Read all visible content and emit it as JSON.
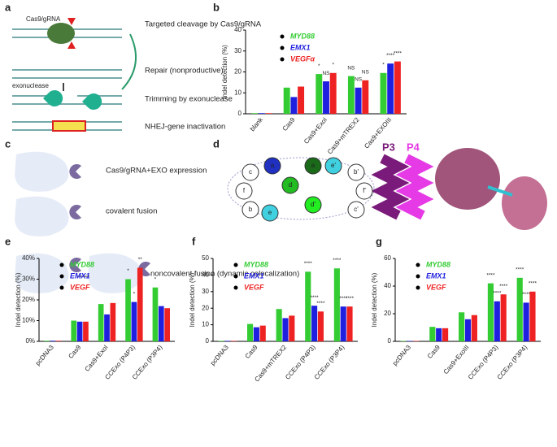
{
  "panels": [
    "a",
    "b",
    "c",
    "d",
    "e",
    "f",
    "g"
  ],
  "panel_a": {
    "enzyme": "Cas9/gRNA",
    "steps": [
      "Targeted cleavage by Cas9/gRNA",
      "Repair (nonproductive)",
      "Trimming by exonuclease",
      "NHEJ-gene inactivation"
    ],
    "exonuclease": "exonuclease"
  },
  "panel_c": {
    "labels": [
      "Cas9/gRNA+EXO expression",
      "covalent fusion",
      "noncovalent fusion (dynamic colocalization)"
    ]
  },
  "panel_d": {
    "nodes": [
      "c",
      "a",
      "d",
      "a",
      "e'",
      "b'",
      "f'",
      "c'",
      "e",
      "d'",
      "b",
      "f"
    ],
    "helices": [
      "P3",
      "P4"
    ]
  },
  "chart_data": [
    {
      "type": "bar",
      "y_label": "Indel detection (%)",
      "categories": [
        "blank",
        "Cas9",
        "Cas9+ExoI",
        "Cas9+mTREX2",
        "Cas9+EXOIII"
      ],
      "series": [
        {
          "name": "MYD88",
          "color": "#33cc33",
          "values": [
            0.3,
            12.5,
            19,
            18,
            19.5
          ]
        },
        {
          "name": "EMX1",
          "color": "#1f1fe0",
          "values": [
            0.3,
            8,
            15.5,
            12.5,
            24
          ]
        },
        {
          "name": "VEGFα",
          "color": "#ee2222",
          "values": [
            0.3,
            13,
            19.5,
            16,
            25
          ]
        }
      ],
      "significance": [
        [
          null,
          null,
          null
        ],
        [
          null,
          null,
          null
        ],
        [
          "*",
          "NS",
          "*"
        ],
        [
          "NS",
          "NS",
          "NS"
        ],
        [
          "*",
          "****",
          "****"
        ]
      ],
      "ylim": [
        0,
        40
      ],
      "yticks": [
        0,
        10,
        20,
        30,
        40
      ]
    },
    {
      "type": "bar",
      "y_label": "Indel detection (%)",
      "categories": [
        "pcDNA3",
        "Cas9",
        "Cas9+ExoI",
        "CCExo (P4P3)",
        "CCExo (P3P4)"
      ],
      "series": [
        {
          "name": "MYD88",
          "color": "#33cc33",
          "values": [
            0.3,
            10,
            18,
            30,
            26
          ]
        },
        {
          "name": "EMX1",
          "color": "#1f1fe0",
          "values": [
            0.3,
            9.5,
            13,
            19,
            17
          ]
        },
        {
          "name": "VEGF",
          "color": "#ee2222",
          "values": [
            0.3,
            9.5,
            18.5,
            35.5,
            16
          ]
        }
      ],
      "significance": [
        [
          null,
          null,
          null
        ],
        [
          null,
          null,
          null
        ],
        [
          null,
          null,
          null
        ],
        [
          "*",
          "*",
          "**"
        ],
        [
          "*",
          null,
          null
        ]
      ],
      "ylim": [
        0,
        40
      ],
      "yticks": [
        {
          "value": 0,
          "label": "0%"
        },
        {
          "value": 10,
          "label": "10%"
        },
        {
          "value": 20,
          "label": "20%"
        },
        {
          "value": 30,
          "label": "30%"
        },
        {
          "value": 40,
          "label": "40%"
        }
      ]
    },
    {
      "type": "bar",
      "y_label": "Indel detection (%)",
      "categories": [
        "pcDNA3",
        "Cas9",
        "Cas9+mTREX2",
        "CCExo (P4P3)",
        "CCExo (P3P4)"
      ],
      "series": [
        {
          "name": "MYD88",
          "color": "#33cc33",
          "values": [
            0.3,
            10.5,
            19.5,
            42,
            44
          ]
        },
        {
          "name": "EMX1",
          "color": "#1f1fe0",
          "values": [
            0.3,
            8.5,
            14,
            21.5,
            21
          ]
        },
        {
          "name": "VEGF",
          "color": "#ee2222",
          "values": [
            0.3,
            9.5,
            15.5,
            18,
            21
          ]
        }
      ],
      "significance": [
        [
          null,
          null,
          null
        ],
        [
          null,
          null,
          null
        ],
        [
          null,
          null,
          null
        ],
        [
          "****",
          "****",
          "****"
        ],
        [
          "****",
          "****",
          "****"
        ]
      ],
      "ylim": [
        0,
        50
      ],
      "yticks": [
        0,
        10,
        20,
        30,
        40,
        50
      ]
    },
    {
      "type": "bar",
      "y_label": "Indel detection (%)",
      "categories": [
        "pcDNA3",
        "Cas9",
        "Cas9+ExoIII",
        "CCExo (P4P3)",
        "CCExo (P3P4)"
      ],
      "series": [
        {
          "name": "MYD88",
          "color": "#33cc33",
          "values": [
            0.3,
            10.5,
            21,
            42,
            46
          ]
        },
        {
          "name": "EMX1",
          "color": "#1f1fe0",
          "values": [
            0.3,
            9.5,
            16,
            29,
            28
          ]
        },
        {
          "name": "VEGF",
          "color": "#ee2222",
          "values": [
            0.3,
            9.5,
            19,
            34,
            36
          ]
        }
      ],
      "significance": [
        [
          null,
          null,
          null
        ],
        [
          null,
          null,
          null
        ],
        [
          null,
          null,
          null
        ],
        [
          "****",
          "****",
          "****"
        ],
        [
          "****",
          "****",
          "****"
        ]
      ],
      "ylim": [
        0,
        60
      ],
      "yticks": [
        0,
        20,
        40,
        60
      ]
    }
  ]
}
